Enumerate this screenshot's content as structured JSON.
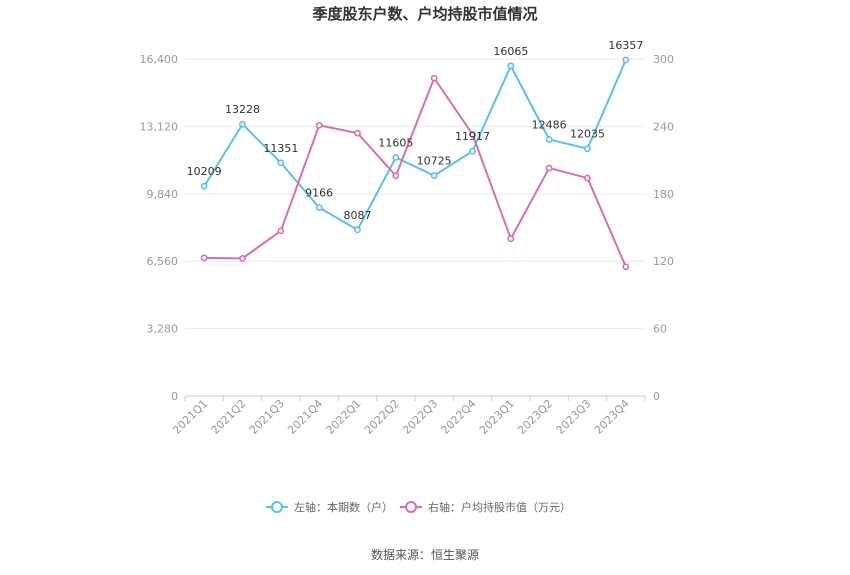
{
  "chart_data": {
    "type": "line",
    "title": "季度股东户数、户均持股市值情况",
    "categories": [
      "2021Q1",
      "2021Q2",
      "2021Q3",
      "2021Q4",
      "2022Q1",
      "2022Q2",
      "2022Q3",
      "2022Q4",
      "2023Q1",
      "2023Q2",
      "2023Q3",
      "2023Q4"
    ],
    "y_left": {
      "ticks": [
        "0",
        "3,280",
        "6,560",
        "9,840",
        "13,120",
        "16,400"
      ],
      "range": [
        0,
        16400
      ]
    },
    "y_right": {
      "ticks": [
        "0",
        "60",
        "120",
        "180",
        "240",
        "300"
      ],
      "range": [
        0,
        300
      ]
    },
    "series": [
      {
        "name": "左轴：本期数（户）",
        "axis": "left",
        "color": "#5bc0eb",
        "values": [
          10209,
          13228,
          11351,
          9166,
          8087,
          11605,
          10725,
          11917,
          16065,
          12486,
          12035,
          16357
        ],
        "labels": [
          "10209",
          "13228",
          "11351",
          "9166",
          "8087",
          "11605",
          "10725",
          "11917",
          "16065",
          "12486",
          "12035",
          "16357"
        ]
      },
      {
        "name": "右轴：户均持股市值（万元）",
        "axis": "right",
        "color": "#d86fae",
        "values": [
          123,
          122.5,
          147,
          241,
          234,
          196,
          283,
          233,
          140,
          203,
          194,
          115
        ]
      }
    ],
    "legend_position": "bottom",
    "grid": true
  },
  "source": "数据来源：恒生聚源"
}
